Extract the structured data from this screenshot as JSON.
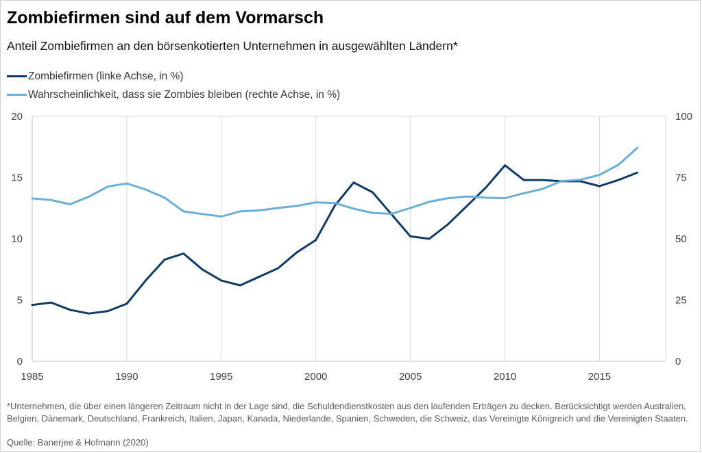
{
  "title": "Zombiefirmen sind auf dem Vormarsch",
  "subtitle": "Anteil Zombiefirmen an den börsenkotierten Unternehmen in ausgewählten Ländern*",
  "footnote": "*Unternehmen, die über einen längeren Zeitraum nicht in der Lage sind, die Schuldendienstkosten aus den laufenden Erträgen zu decken. Berücksichtigt werden Australien, Belgien, Dänemark, Deutschland, Frankreich, Italien, Japan, Kanada, Niederlande, Spanien, Schweden, die Schweiz, das Vereinigte Königreich und die Vereinigten Staaten.",
  "source": "Quelle: Banerjee & Hofmann (2020)",
  "chart_data": {
    "type": "line",
    "title": "Zombiefirmen sind auf dem Vormarsch",
    "subtitle": "Anteil Zombiefirmen an den börsenkotierten Unternehmen in ausgewählten Ländern*",
    "x": [
      1985,
      1986,
      1987,
      1988,
      1989,
      1990,
      1991,
      1992,
      1993,
      1994,
      1995,
      1996,
      1997,
      1998,
      1999,
      2000,
      2001,
      2002,
      2003,
      2004,
      2005,
      2006,
      2007,
      2008,
      2009,
      2010,
      2011,
      2012,
      2013,
      2014,
      2015,
      2016,
      2017
    ],
    "xlim": [
      1985,
      2018.5
    ],
    "x_ticks": [
      "1985",
      "1990",
      "1995",
      "2000",
      "2005",
      "2010",
      "2015"
    ],
    "y_left": {
      "ylim": [
        0,
        20
      ],
      "ticks": [
        "0",
        "5",
        "10",
        "15",
        "20"
      ]
    },
    "y_right": {
      "ylim": [
        0,
        100
      ],
      "ticks": [
        "0",
        "25",
        "50",
        "75",
        "100"
      ]
    },
    "grid": "vertical",
    "legend_position": "top-left",
    "series": [
      {
        "name": "Zombiefirmen (linke Achse, in %)",
        "axis": "left",
        "color": "#0e3a66",
        "values": [
          4.6,
          4.8,
          4.2,
          3.9,
          4.1,
          4.7,
          6.6,
          8.3,
          8.8,
          7.5,
          6.6,
          6.2,
          6.9,
          7.6,
          8.9,
          9.9,
          12.7,
          14.6,
          13.8,
          12.0,
          10.2,
          10.0,
          11.2,
          12.7,
          14.2,
          16.0,
          14.8,
          14.8,
          14.7,
          14.7,
          14.3,
          14.8,
          15.4
        ]
      },
      {
        "name": "Wahrscheinlichkeit, dass sie Zombies bleiben (rechte Achse, in %)",
        "axis": "right",
        "color": "#6baed6",
        "values": [
          66.5,
          65.8,
          64.1,
          67.2,
          71.3,
          72.6,
          70.1,
          66.8,
          61.2,
          60.1,
          59.1,
          61.2,
          61.6,
          62.6,
          63.4,
          64.9,
          64.6,
          62.3,
          60.6,
          60.2,
          62.6,
          65.1,
          66.6,
          67.3,
          66.8,
          66.6,
          68.6,
          70.4,
          73.6,
          74.1,
          76.1,
          80.2,
          87.1
        ]
      }
    ]
  }
}
